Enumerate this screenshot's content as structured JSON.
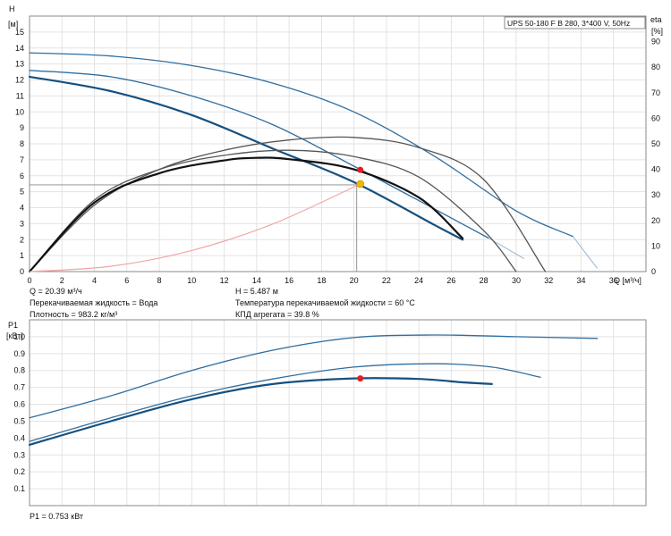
{
  "title": "UPS 50-180 F B 280, 3*400 V, 50Hz",
  "info_left": [
    "Q = 20.39 м³/ч",
    "Перекачиваемая жидкость = Вода",
    "Плотность = 983.2 кг/м³"
  ],
  "info_right": [
    "H = 5.487 м",
    "Температура перекачиваемой жидкости = 60 °C",
    "КПД агрегата = 39.8 %"
  ],
  "p1_readout": "P1 = 0.753 кВт",
  "colors": {
    "accent": "#2f6ea1",
    "dark": "#15507f",
    "grey": "#555555",
    "pink": "#f2a6a6",
    "red": "#e02020",
    "yellow": "#f4b400"
  },
  "chart_data": [
    {
      "type": "line",
      "title": "UPS 50-180 F B 280, 3*400 V, 50Hz",
      "xlabel": "Q [м³/ч]",
      "ylabel": "H [м]",
      "y2label": "eta [%]",
      "xlim": [
        0,
        38
      ],
      "ylim": [
        0,
        16
      ],
      "y2lim": [
        0,
        100
      ],
      "x_ticks": [
        0,
        2,
        4,
        6,
        8,
        10,
        12,
        14,
        16,
        18,
        20,
        22,
        24,
        26,
        28,
        30,
        32,
        34,
        36
      ],
      "y_ticks": [
        0,
        1,
        2,
        3,
        4,
        5,
        6,
        7,
        8,
        9,
        10,
        11,
        12,
        13,
        14,
        15
      ],
      "y2_ticks": [
        0,
        10,
        20,
        30,
        40,
        50,
        60,
        70,
        80,
        90
      ],
      "grid": true,
      "series": [
        {
          "kind": "head",
          "color": "#2f6ea1",
          "width": 1.3,
          "x": [
            0,
            5,
            10,
            15,
            20,
            25,
            30,
            33.5
          ],
          "y": [
            13.7,
            13.5,
            12.9,
            11.8,
            10.0,
            7.2,
            3.8,
            2.2
          ],
          "tail_x": [
            33.5,
            35
          ],
          "tail_y": [
            2.2,
            0.2
          ]
        },
        {
          "kind": "head",
          "color": "#2f6ea1",
          "width": 1.3,
          "x": [
            0,
            5,
            10,
            15,
            20,
            25,
            28.3
          ],
          "y": [
            12.6,
            12.2,
            11.0,
            9.2,
            6.6,
            3.9,
            2.1
          ],
          "tail_x": [
            28.3,
            30.5
          ],
          "tail_y": [
            2.1,
            0.8
          ]
        },
        {
          "kind": "head",
          "color": "#15507f",
          "width": 2.2,
          "x": [
            0,
            5,
            10,
            15,
            20,
            25,
            26.7
          ],
          "y": [
            12.2,
            11.3,
            9.8,
            7.7,
            5.6,
            2.9,
            2.0
          ]
        },
        {
          "kind": "eta",
          "color": "#555555",
          "width": 1.3,
          "x": [
            0,
            4,
            8,
            12,
            16,
            20,
            24,
            28,
            31.8
          ],
          "y": [
            0,
            26,
            40,
            47.5,
            51.5,
            52.5,
            48.5,
            36,
            0
          ]
        },
        {
          "kind": "eta",
          "color": "#555555",
          "width": 1.3,
          "x": [
            0,
            4,
            8,
            12,
            16,
            20,
            24,
            28,
            30
          ],
          "y": [
            0,
            28,
            40,
            45.5,
            47.5,
            45,
            37,
            16,
            0
          ]
        },
        {
          "kind": "eta",
          "color": "#111111",
          "width": 2.2,
          "x": [
            0,
            4,
            8,
            12,
            14,
            16,
            20,
            24,
            26.7
          ],
          "y": [
            0,
            27,
            38.5,
            43.5,
            44.5,
            44,
            40,
            29,
            13
          ]
        },
        {
          "kind": "system",
          "color": "#f2a6a6",
          "width": 1.2,
          "x": [
            0,
            5,
            10,
            15,
            20.39
          ],
          "y": [
            0,
            0.33,
            1.32,
            2.98,
            5.487
          ]
        }
      ],
      "operating_point": {
        "x": 20.39,
        "y": 5.487,
        "eta": 39.8,
        "y_eta_axis": 3.98
      }
    },
    {
      "type": "line",
      "ylabel": "P1 [кВт]",
      "xlim": [
        0,
        38
      ],
      "ylim": [
        0,
        1.1
      ],
      "y_ticks": [
        0.1,
        0.2,
        0.3,
        0.4,
        0.5,
        0.6,
        0.7,
        0.8,
        0.9,
        1.0
      ],
      "grid": true,
      "series": [
        {
          "color": "#2f6ea1",
          "width": 1.3,
          "x": [
            0,
            5,
            10,
            15,
            20,
            25,
            30,
            35
          ],
          "y": [
            0.52,
            0.65,
            0.8,
            0.92,
            0.995,
            1.01,
            1.0,
            0.99
          ]
        },
        {
          "color": "#2f6ea1",
          "width": 1.3,
          "x": [
            0,
            5,
            10,
            15,
            20,
            25,
            28.5,
            31.5
          ],
          "y": [
            0.38,
            0.52,
            0.65,
            0.75,
            0.82,
            0.84,
            0.82,
            0.76
          ]
        },
        {
          "color": "#15507f",
          "width": 2.2,
          "x": [
            0,
            5,
            10,
            15,
            20,
            24,
            26.7,
            28.5
          ],
          "y": [
            0.36,
            0.5,
            0.63,
            0.72,
            0.753,
            0.75,
            0.73,
            0.72
          ]
        }
      ],
      "operating_point": {
        "x": 20.39,
        "y": 0.753
      }
    }
  ]
}
